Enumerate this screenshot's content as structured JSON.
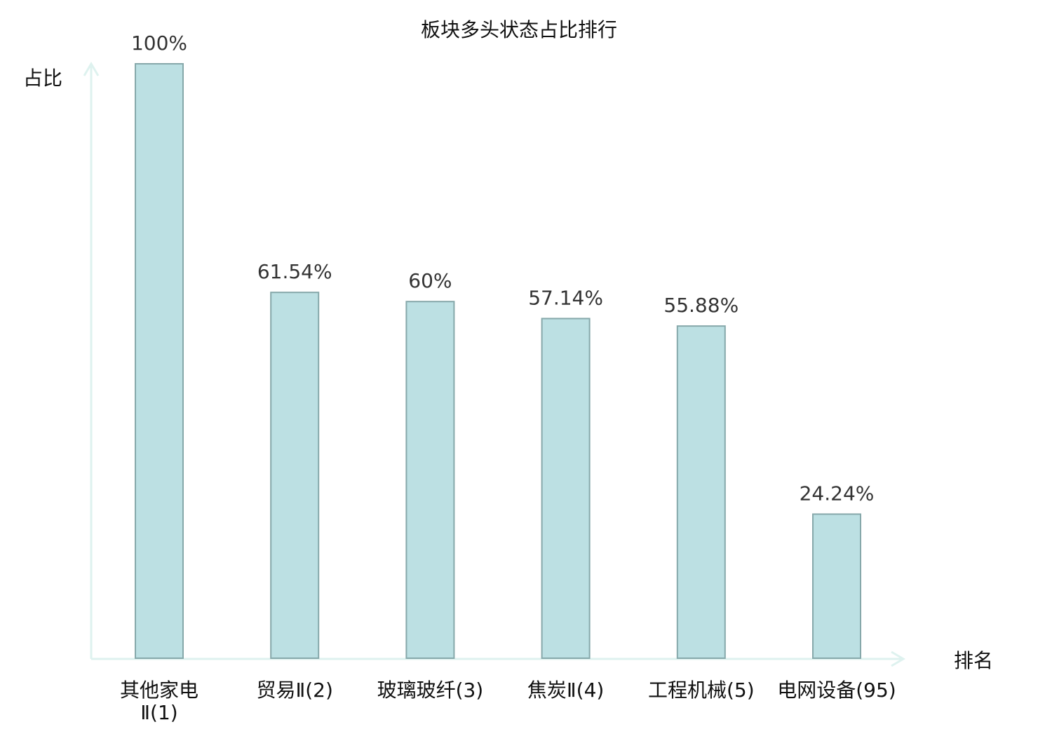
{
  "chart_data": {
    "type": "bar",
    "title": "板块多头状态占比排行",
    "xlabel": "排名",
    "ylabel": "占比",
    "categories": [
      "其他家电Ⅱ(1)",
      "贸易Ⅱ(2)",
      "玻璃玻纤(3)",
      "焦炭Ⅱ(4)",
      "工程机械(5)",
      "电网设备(95)"
    ],
    "category_lines": [
      [
        "其他家电",
        "Ⅱ(1)"
      ],
      [
        "贸易Ⅱ(2)"
      ],
      [
        "玻璃玻纤(3)"
      ],
      [
        "焦炭Ⅱ(4)"
      ],
      [
        "工程机械(5)"
      ],
      [
        "电网设备(95)"
      ]
    ],
    "values": [
      100,
      61.54,
      60,
      57.14,
      55.88,
      24.24
    ],
    "data_labels": [
      "100%",
      "61.54%",
      "60%",
      "57.14%",
      "55.88%",
      "24.24%"
    ],
    "highlight_index": 5,
    "ylim": [
      0,
      100
    ],
    "grid": false,
    "colors": {
      "bar_fill": "#bce0e3",
      "bar_stroke": "#86a8aa",
      "axis": "#def2ef",
      "highlight_label": "#ee1111",
      "label": "#333333"
    }
  }
}
